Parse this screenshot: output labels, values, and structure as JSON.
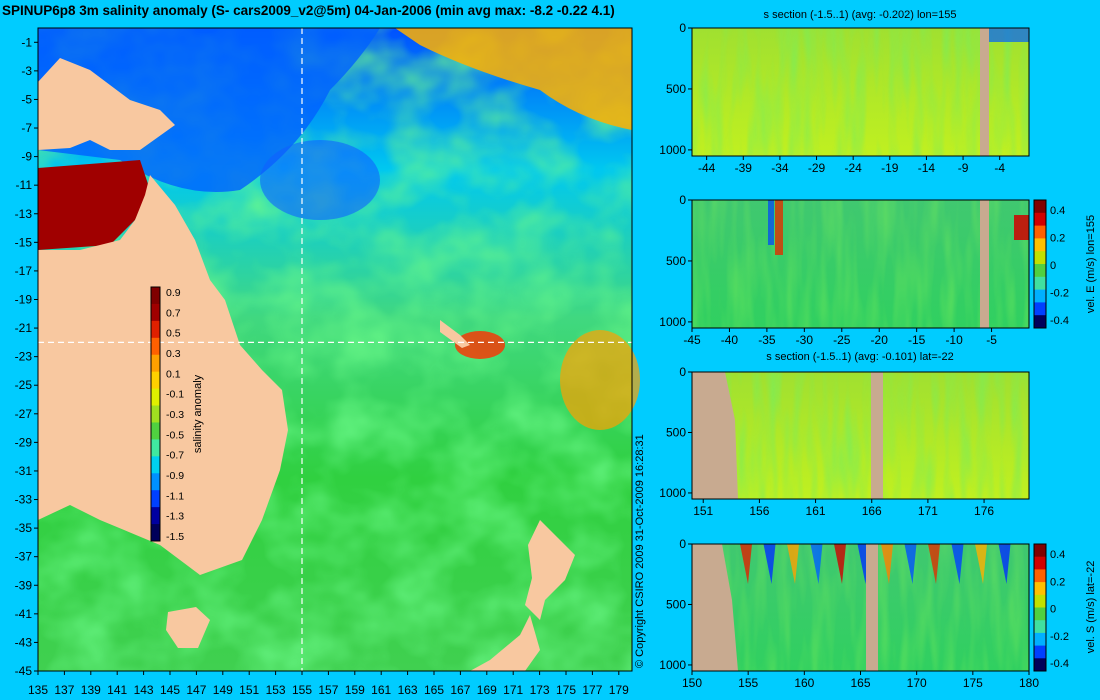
{
  "colors": {
    "background": "#00ccff",
    "land_map": "#f8c8a0",
    "land_section": "#c8aa90",
    "axis": "#000000"
  },
  "colormap": [
    "#00005a",
    "#0000a0",
    "#0040ff",
    "#0090ff",
    "#00d0f0",
    "#40e8a0",
    "#50d040",
    "#a0e020",
    "#e0f000",
    "#ffd000",
    "#ffa000",
    "#ff6000",
    "#e02000",
    "#a00000",
    "#800000"
  ],
  "chart_data": [
    {
      "id": "map",
      "type": "heatmap",
      "title": "SPINUP6p8 3m salinity anomaly (S- cars2009_v2@5m) 04-Jan-2006 (min avg max: -8.2 -0.22 4.1)",
      "xlim": [
        135,
        180
      ],
      "ylim": [
        -45,
        0
      ],
      "x_ticks": [
        135,
        137,
        139,
        141,
        143,
        145,
        147,
        149,
        151,
        153,
        155,
        157,
        159,
        161,
        163,
        165,
        167,
        169,
        171,
        173,
        175,
        177,
        179
      ],
      "y_ticks": [
        -1,
        -3,
        -5,
        -7,
        -9,
        -11,
        -13,
        -15,
        -17,
        -19,
        -21,
        -23,
        -25,
        -27,
        -29,
        -31,
        -33,
        -35,
        -37,
        -39,
        -41,
        -43,
        -45
      ],
      "section_lines": {
        "lon": 155,
        "lat": -22
      },
      "colorbar": {
        "label": "salinity anomaly",
        "range": [
          -1.5,
          1.0
        ],
        "ticks": [
          "0.9",
          "0.7",
          "0.5",
          "0.3",
          "0.1",
          "-0.1",
          "-0.3",
          "-0.5",
          "-0.7",
          "-0.9",
          "-1.1",
          "-1.3",
          "-1.5"
        ]
      },
      "copyright": "© Copyright CSIRO 2009   31-Oct-2009 16:28:31"
    },
    {
      "id": "s_lon",
      "type": "heatmap",
      "title": "s section (-1.5..1) (avg: -0.202) lon=155",
      "xlim": [
        -46,
        0
      ],
      "x_ticks": [
        -44,
        -39,
        -34,
        -29,
        -24,
        -19,
        -14,
        -9,
        -4
      ],
      "ylim": [
        1050,
        0
      ],
      "y_ticks": [
        0,
        500,
        1000
      ]
    },
    {
      "id": "u_lon",
      "type": "heatmap",
      "title": "",
      "xlim": [
        -45,
        0
      ],
      "x_ticks": [
        -45,
        -40,
        -35,
        -30,
        -25,
        -20,
        -15,
        -10,
        -5
      ],
      "ylim": [
        1050,
        0
      ],
      "y_ticks": [
        0,
        500,
        1000
      ],
      "colorbar": {
        "label": "vel. E (m/s) lon=155",
        "ticks": [
          "0.4",
          "0.2",
          "0",
          "-0.2",
          "-0.4"
        ]
      }
    },
    {
      "id": "s_lat",
      "type": "heatmap",
      "title": "s section (-1.5..1) (avg: -0.101) lat=-22",
      "xlim": [
        150,
        180
      ],
      "x_ticks": [
        151,
        156,
        161,
        166,
        171,
        176
      ],
      "ylim": [
        1050,
        0
      ],
      "y_ticks": [
        0,
        500,
        1000
      ]
    },
    {
      "id": "v_lat",
      "type": "heatmap",
      "title": "",
      "xlim": [
        150,
        180
      ],
      "x_ticks": [
        150,
        155,
        160,
        165,
        170,
        175,
        180
      ],
      "ylim": [
        1050,
        0
      ],
      "y_ticks": [
        0,
        500,
        1000
      ],
      "colorbar": {
        "label": "vel. S (m/s) lat=-22",
        "ticks": [
          "0.4",
          "0.2",
          "0",
          "-0.2",
          "-0.4"
        ]
      }
    }
  ]
}
